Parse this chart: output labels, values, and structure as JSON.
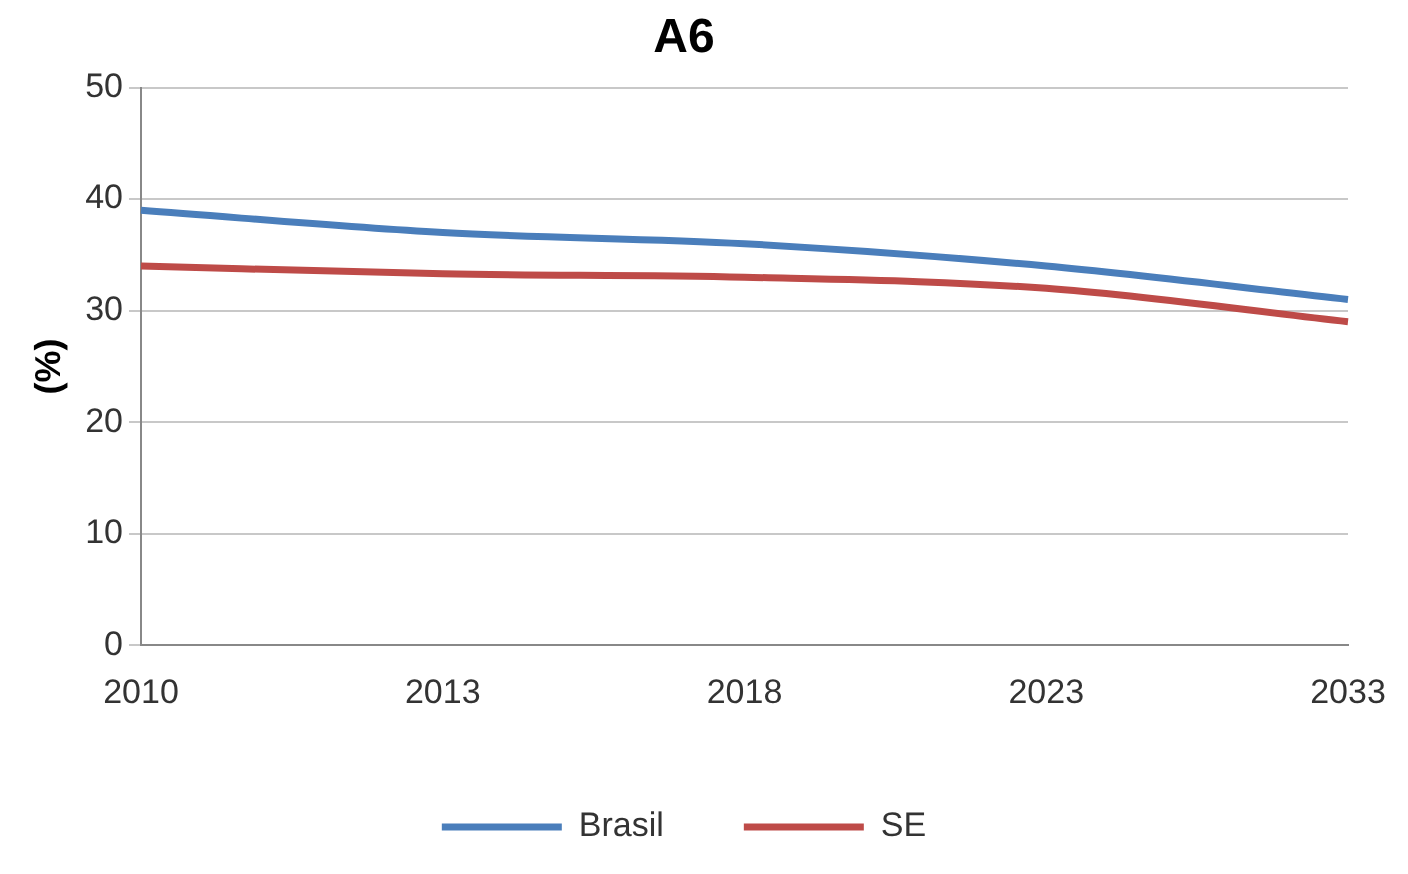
{
  "chart_data": {
    "type": "line",
    "title": "A6",
    "ylabel": "(%)",
    "categories": [
      "2010",
      "2013",
      "2018",
      "2023",
      "2033"
    ],
    "series": [
      {
        "name": "Brasil",
        "color": "#4a7ebb",
        "values": [
          39,
          37,
          36,
          34,
          31
        ]
      },
      {
        "name": "SE",
        "color": "#be4b48",
        "values": [
          34,
          33.3,
          33,
          32,
          29
        ]
      }
    ],
    "ylim": [
      0,
      50
    ],
    "yticks": [
      0,
      10,
      20,
      30,
      40,
      50
    ],
    "grid": "y",
    "legend": "bottom",
    "marker": "none",
    "line_style": "solid"
  }
}
